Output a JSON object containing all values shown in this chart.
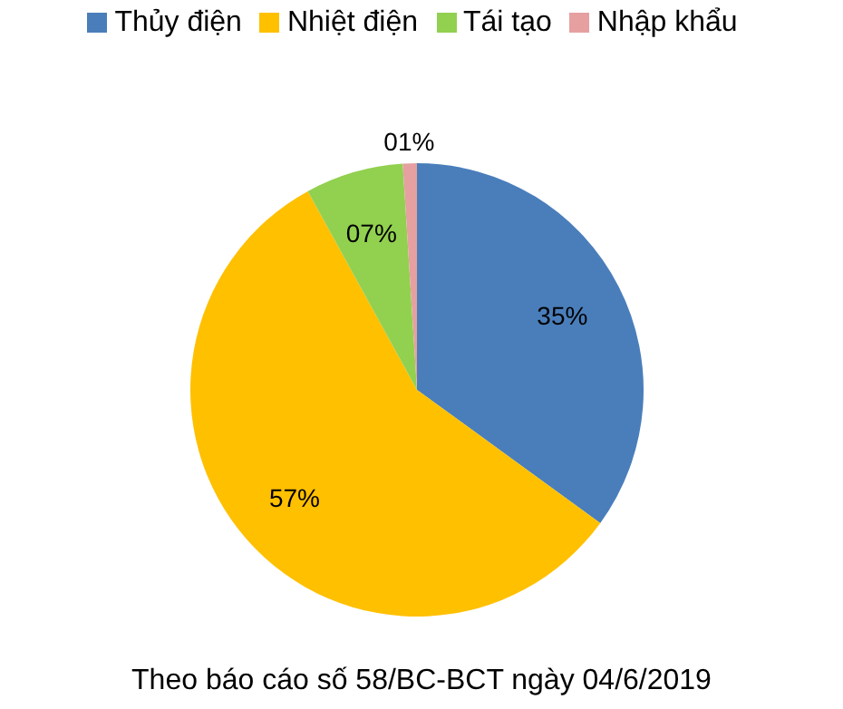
{
  "chart_data": {
    "type": "pie",
    "categories": [
      "Thủy điện",
      "Nhiệt điện",
      "Tái tạo",
      "Nhập khẩu"
    ],
    "values": [
      35,
      57,
      7,
      1
    ],
    "value_labels": [
      "35%",
      "57%",
      "07%",
      "01%"
    ],
    "colors": [
      "#4a7ebb",
      "#ffc000",
      "#92d050",
      "#e6a0a0"
    ],
    "legend": "top",
    "annotations": [
      "Theo báo cáo số 58/BC-BCT ngày 04/6/2019"
    ]
  }
}
